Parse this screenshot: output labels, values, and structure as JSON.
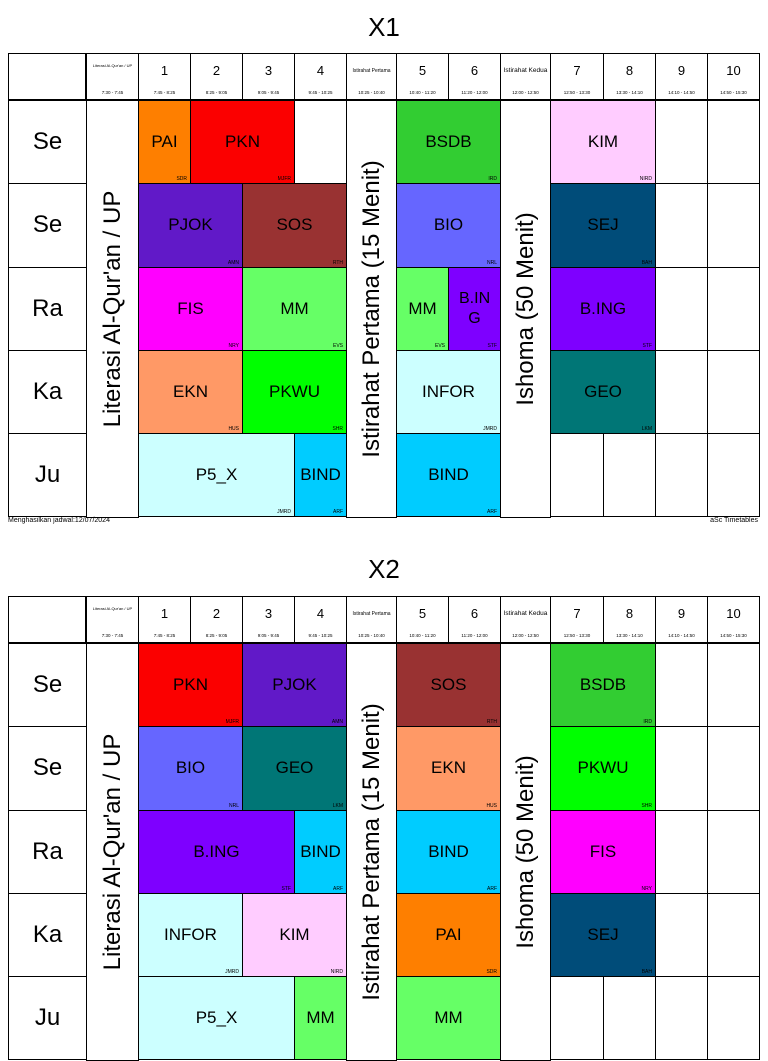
{
  "footer": {
    "generated": "Menghasilkan jadwal:12/07/2024",
    "brand": "aSc Timetables"
  },
  "columns": [
    {
      "num": "",
      "time": "7:30 - 7:45",
      "label": "Literasi Al-Qur'an / UP",
      "label_style": "tiny"
    },
    {
      "num": "1",
      "time": "7:45 - 8:25"
    },
    {
      "num": "2",
      "time": "8:25 - 9:05"
    },
    {
      "num": "3",
      "time": "9:05 - 9:45"
    },
    {
      "num": "4",
      "time": "9:45 - 10:25"
    },
    {
      "num": "",
      "time": "10:25 - 10:40",
      "label": "Istirahat Pertama",
      "label_style": "small"
    },
    {
      "num": "5",
      "time": "10:40 - 11:20"
    },
    {
      "num": "6",
      "time": "11:20 - 12:00"
    },
    {
      "num": "",
      "time": "12:00 - 12:50",
      "label": "Istirahat Kedua",
      "label_style": "bold"
    },
    {
      "num": "7",
      "time": "12:50 - 13:30"
    },
    {
      "num": "8",
      "time": "13:30 - 14:10"
    },
    {
      "num": "9",
      "time": "14:10 - 14:50"
    },
    {
      "num": "10",
      "time": "14:50 - 15:30"
    }
  ],
  "breaks": [
    {
      "col": 0,
      "text": "Literasi Al-Qur'an / UP"
    },
    {
      "col": 5,
      "text": "Istirahat Pertama (15 Menit)"
    },
    {
      "col": 8,
      "text": "Ishoma (50 Menit)"
    }
  ],
  "timetables": [
    {
      "title": "X1",
      "days": [
        "Se",
        "Se",
        "Ra",
        "Ka",
        "Ju"
      ],
      "lessons": [
        {
          "row": 0,
          "col": 1,
          "span": 1,
          "subject": "PAI",
          "teacher": "SDR",
          "color": "#fe7f00"
        },
        {
          "row": 0,
          "col": 2,
          "span": 2,
          "subject": "PKN",
          "teacher": "MJFR",
          "color": "#fb0000"
        },
        {
          "row": 0,
          "col": 6,
          "span": 2,
          "subject": "BSDB",
          "teacher": "IRD",
          "color": "#32cd32"
        },
        {
          "row": 0,
          "col": 9,
          "span": 2,
          "subject": "KIM",
          "teacher": "NIRD",
          "color": "#ffccff"
        },
        {
          "row": 1,
          "col": 1,
          "span": 2,
          "subject": "PJOK",
          "teacher": "AMN",
          "color": "#6119c8"
        },
        {
          "row": 1,
          "col": 3,
          "span": 2,
          "subject": "SOS",
          "teacher": "RTH",
          "color": "#993232"
        },
        {
          "row": 1,
          "col": 6,
          "span": 2,
          "subject": "BIO",
          "teacher": "NRL",
          "color": "#6666ff"
        },
        {
          "row": 1,
          "col": 9,
          "span": 2,
          "subject": "SEJ",
          "teacher": "BAH",
          "color": "#004c79"
        },
        {
          "row": 2,
          "col": 1,
          "span": 2,
          "subject": "FIS",
          "teacher": "NRY",
          "color": "#ff00ff"
        },
        {
          "row": 2,
          "col": 3,
          "span": 2,
          "subject": "MM",
          "teacher": "EVS",
          "color": "#66ff66"
        },
        {
          "row": 2,
          "col": 6,
          "span": 1,
          "subject": "MM",
          "teacher": "EVS",
          "color": "#66ff66"
        },
        {
          "row": 2,
          "col": 7,
          "span": 1,
          "subject": "B.IN G",
          "teacher": "STF",
          "color": "#7e00ff"
        },
        {
          "row": 2,
          "col": 9,
          "span": 2,
          "subject": "B.ING",
          "teacher": "STF",
          "color": "#7e00ff"
        },
        {
          "row": 3,
          "col": 1,
          "span": 2,
          "subject": "EKN",
          "teacher": "HUS",
          "color": "#ff9966"
        },
        {
          "row": 3,
          "col": 3,
          "span": 2,
          "subject": "PKWU",
          "teacher": "SHR",
          "color": "#00ff00"
        },
        {
          "row": 3,
          "col": 6,
          "span": 2,
          "subject": "INFOR",
          "teacher": "JMRD",
          "color": "#ccffff"
        },
        {
          "row": 3,
          "col": 9,
          "span": 2,
          "subject": "GEO",
          "teacher": "LKM",
          "color": "#007676"
        },
        {
          "row": 4,
          "col": 1,
          "span": 3,
          "subject": "P5_X",
          "teacher": "JMRD",
          "color": "#ccffff"
        },
        {
          "row": 4,
          "col": 4,
          "span": 1,
          "subject": "BIND",
          "teacher": "ARF",
          "color": "#00ccff"
        },
        {
          "row": 4,
          "col": 6,
          "span": 2,
          "subject": "BIND",
          "teacher": "ARF",
          "color": "#00ccff"
        }
      ]
    },
    {
      "title": "X2",
      "days": [
        "Se",
        "Se",
        "Ra",
        "Ka",
        "Ju"
      ],
      "lessons": [
        {
          "row": 0,
          "col": 1,
          "span": 2,
          "subject": "PKN",
          "teacher": "MJFR",
          "color": "#fb0000"
        },
        {
          "row": 0,
          "col": 3,
          "span": 2,
          "subject": "PJOK",
          "teacher": "AMN",
          "color": "#6119c8"
        },
        {
          "row": 0,
          "col": 6,
          "span": 2,
          "subject": "SOS",
          "teacher": "RTH",
          "color": "#993232"
        },
        {
          "row": 0,
          "col": 9,
          "span": 2,
          "subject": "BSDB",
          "teacher": "IRD",
          "color": "#32cd32"
        },
        {
          "row": 1,
          "col": 1,
          "span": 2,
          "subject": "BIO",
          "teacher": "NRL",
          "color": "#6666ff"
        },
        {
          "row": 1,
          "col": 3,
          "span": 2,
          "subject": "GEO",
          "teacher": "LKM",
          "color": "#007676"
        },
        {
          "row": 1,
          "col": 6,
          "span": 2,
          "subject": "EKN",
          "teacher": "HUS",
          "color": "#ff9966"
        },
        {
          "row": 1,
          "col": 9,
          "span": 2,
          "subject": "PKWU",
          "teacher": "SHR",
          "color": "#00ff00"
        },
        {
          "row": 2,
          "col": 1,
          "span": 3,
          "subject": "B.ING",
          "teacher": "STF",
          "color": "#7e00ff"
        },
        {
          "row": 2,
          "col": 4,
          "span": 1,
          "subject": "BIND",
          "teacher": "ARF",
          "color": "#00ccff"
        },
        {
          "row": 2,
          "col": 6,
          "span": 2,
          "subject": "BIND",
          "teacher": "ARF",
          "color": "#00ccff"
        },
        {
          "row": 2,
          "col": 9,
          "span": 2,
          "subject": "FIS",
          "teacher": "NRY",
          "color": "#ff00ff"
        },
        {
          "row": 3,
          "col": 1,
          "span": 2,
          "subject": "INFOR",
          "teacher": "JMRD",
          "color": "#ccffff"
        },
        {
          "row": 3,
          "col": 3,
          "span": 2,
          "subject": "KIM",
          "teacher": "NIRD",
          "color": "#ffccff"
        },
        {
          "row": 3,
          "col": 6,
          "span": 2,
          "subject": "PAI",
          "teacher": "SDR",
          "color": "#fe7f00"
        },
        {
          "row": 3,
          "col": 9,
          "span": 2,
          "subject": "SEJ",
          "teacher": "BAH",
          "color": "#004c79"
        },
        {
          "row": 4,
          "col": 1,
          "span": 3,
          "subject": "P5_X",
          "teacher": "",
          "color": "#ccffff"
        },
        {
          "row": 4,
          "col": 4,
          "span": 1,
          "subject": "MM",
          "teacher": "",
          "color": "#66ff66"
        },
        {
          "row": 4,
          "col": 6,
          "span": 2,
          "subject": "MM",
          "teacher": "",
          "color": "#66ff66"
        }
      ]
    }
  ]
}
